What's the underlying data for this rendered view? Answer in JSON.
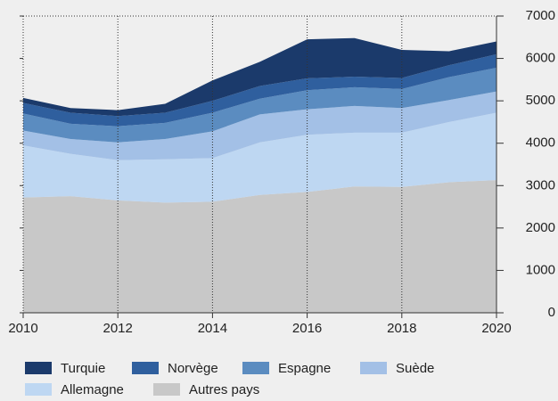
{
  "chart_data": {
    "type": "stacked_area",
    "x": [
      2010,
      2011,
      2012,
      2013,
      2014,
      2015,
      2016,
      2017,
      2018,
      2019,
      2020
    ],
    "xlim": [
      2010,
      2020
    ],
    "xticks": [
      2010,
      2012,
      2014,
      2016,
      2018,
      2020
    ],
    "ylim": [
      0,
      7000
    ],
    "yticks": [
      0,
      1000,
      2000,
      3000,
      4000,
      5000,
      6000,
      7000
    ],
    "grid": true,
    "series": [
      {
        "name": "Turquie",
        "color": "#1b3a6b",
        "values": [
          120,
          110,
          140,
          210,
          480,
          570,
          920,
          910,
          660,
          330,
          300
        ]
      },
      {
        "name": "Norvège",
        "color": "#2f5f9e",
        "values": [
          250,
          260,
          240,
          240,
          280,
          300,
          280,
          250,
          260,
          280,
          320
        ]
      },
      {
        "name": "Espagne",
        "color": "#5b8cc0",
        "values": [
          400,
          360,
          380,
          380,
          440,
          370,
          450,
          440,
          450,
          540,
          560
        ]
      },
      {
        "name": "Suède",
        "color": "#a3c0e6",
        "values": [
          350,
          350,
          420,
          480,
          630,
          660,
          600,
          630,
          580,
          520,
          500
        ]
      },
      {
        "name": "Allemagne",
        "color": "#bed7f2",
        "values": [
          1230,
          1000,
          950,
          1020,
          1030,
          1240,
          1350,
          1270,
          1280,
          1420,
          1590
        ]
      },
      {
        "name": "Autres pays",
        "color": "#c8c8c8",
        "values": [
          2720,
          2750,
          2650,
          2600,
          2620,
          2780,
          2850,
          2980,
          2970,
          3080,
          3130
        ]
      }
    ]
  }
}
